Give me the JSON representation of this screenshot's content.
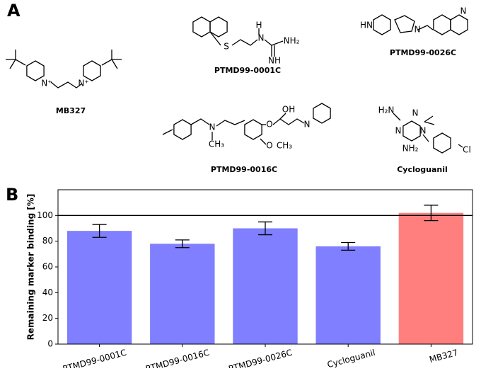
{
  "panel_a": {
    "label": "A",
    "compounds": [
      {
        "name": "MB327",
        "atoms": [
          "N⁺",
          "N⁺"
        ]
      },
      {
        "name": "PTMD99-0001C",
        "atoms": [
          "S",
          "H",
          "N",
          "NH₂",
          "NH"
        ]
      },
      {
        "name": "PTMD99-0026C",
        "atoms": [
          "HN",
          "N",
          "N"
        ]
      },
      {
        "name": "PTMD99-0016C",
        "atoms": [
          "N",
          "CH₃",
          "O",
          "OH",
          "N",
          "O",
          "CH₃"
        ]
      },
      {
        "name": "Cycloguanil",
        "atoms": [
          "H₂N",
          "N",
          "N",
          "N",
          "NH₂",
          "Cl"
        ]
      }
    ]
  },
  "chart_data": {
    "type": "bar",
    "panel_label": "B",
    "y_label": "Remaining marker binding [%]",
    "categories": [
      "PTMD99-0001C",
      "PTMD99-0016C",
      "PTMD99-0026C",
      "Cycloguanil",
      "MB327"
    ],
    "values": [
      88,
      78,
      90,
      76,
      102
    ],
    "errors": [
      5,
      3,
      5,
      3,
      6
    ],
    "colors": [
      "#7f7fff",
      "#7f7fff",
      "#7f7fff",
      "#7f7fff",
      "#ff7f7f"
    ],
    "reference_line": 100,
    "ylim": [
      0,
      120
    ],
    "yticks": [
      0,
      20,
      40,
      60,
      80,
      100
    ]
  }
}
